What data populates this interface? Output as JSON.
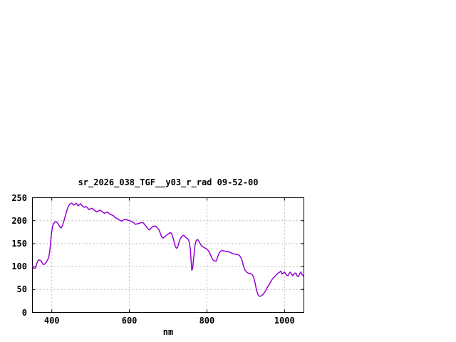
{
  "chart": {
    "title": "sr_2026_038_TGF__y03_r_rad 09-52-00",
    "xlabel": "nm"
  },
  "colors": {
    "background": "#ffffff",
    "line": "#9400d3",
    "grid": "#b4b4b4",
    "axis": "#000000",
    "text": "#000000"
  },
  "chart_data": {
    "type": "line",
    "title": "sr_2026_038_TGF__y03_r_rad 09-52-00",
    "xlabel": "nm",
    "ylabel": "",
    "xlim": [
      350,
      1050
    ],
    "ylim": [
      0,
      250
    ],
    "xticks": [
      400,
      600,
      800,
      1000
    ],
    "yticks": [
      0,
      50,
      100,
      150,
      200,
      250
    ],
    "grid": true,
    "legend_position": "none",
    "line_color": "#9400d3",
    "series": [
      {
        "name": "sr_2026_038_TGF__y03_r_rad",
        "points": [
          [
            350,
            100
          ],
          [
            354,
            96
          ],
          [
            358,
            97
          ],
          [
            362,
            108
          ],
          [
            365,
            114
          ],
          [
            369,
            114
          ],
          [
            373,
            112
          ],
          [
            377,
            105
          ],
          [
            381,
            105
          ],
          [
            385,
            109
          ],
          [
            389,
            114
          ],
          [
            392,
            120
          ],
          [
            395,
            135
          ],
          [
            397,
            155
          ],
          [
            399,
            172
          ],
          [
            402,
            188
          ],
          [
            405,
            194
          ],
          [
            408,
            197
          ],
          [
            411,
            198
          ],
          [
            414,
            196
          ],
          [
            417,
            192
          ],
          [
            421,
            186
          ],
          [
            424,
            184
          ],
          [
            427,
            188
          ],
          [
            430,
            196
          ],
          [
            433,
            205
          ],
          [
            436,
            214
          ],
          [
            439,
            222
          ],
          [
            442,
            230
          ],
          [
            445,
            235
          ],
          [
            448,
            237
          ],
          [
            451,
            238
          ],
          [
            454,
            236
          ],
          [
            457,
            234
          ],
          [
            460,
            236
          ],
          [
            463,
            238
          ],
          [
            466,
            235
          ],
          [
            468,
            232
          ],
          [
            471,
            235
          ],
          [
            474,
            237
          ],
          [
            477,
            234
          ],
          [
            480,
            231
          ],
          [
            484,
            229
          ],
          [
            488,
            231
          ],
          [
            492,
            228
          ],
          [
            496,
            224
          ],
          [
            500,
            226
          ],
          [
            504,
            227
          ],
          [
            508,
            224
          ],
          [
            512,
            221
          ],
          [
            516,
            219
          ],
          [
            520,
            221
          ],
          [
            524,
            223
          ],
          [
            528,
            221
          ],
          [
            532,
            218
          ],
          [
            536,
            216
          ],
          [
            540,
            218
          ],
          [
            544,
            219
          ],
          [
            548,
            215
          ],
          [
            552,
            213
          ],
          [
            556,
            212
          ],
          [
            560,
            210
          ],
          [
            564,
            206
          ],
          [
            568,
            205
          ],
          [
            572,
            203
          ],
          [
            576,
            201
          ],
          [
            580,
            199
          ],
          [
            584,
            201
          ],
          [
            588,
            203
          ],
          [
            592,
            203
          ],
          [
            596,
            201
          ],
          [
            600,
            200
          ],
          [
            604,
            199
          ],
          [
            608,
            197
          ],
          [
            612,
            195
          ],
          [
            616,
            192
          ],
          [
            620,
            193
          ],
          [
            624,
            194
          ],
          [
            628,
            195
          ],
          [
            632,
            196
          ],
          [
            636,
            195
          ],
          [
            640,
            191
          ],
          [
            644,
            187
          ],
          [
            648,
            182
          ],
          [
            652,
            180
          ],
          [
            656,
            184
          ],
          [
            660,
            187
          ],
          [
            664,
            188
          ],
          [
            668,
            188
          ],
          [
            672,
            184
          ],
          [
            676,
            181
          ],
          [
            680,
            172
          ],
          [
            684,
            164
          ],
          [
            687,
            162
          ],
          [
            690,
            164
          ],
          [
            694,
            167
          ],
          [
            698,
            170
          ],
          [
            702,
            172
          ],
          [
            706,
            174
          ],
          [
            709,
            172
          ],
          [
            712,
            165
          ],
          [
            715,
            155
          ],
          [
            718,
            145
          ],
          [
            721,
            140
          ],
          [
            724,
            141
          ],
          [
            727,
            150
          ],
          [
            730,
            158
          ],
          [
            733,
            163
          ],
          [
            736,
            166
          ],
          [
            739,
            168
          ],
          [
            742,
            167
          ],
          [
            745,
            164
          ],
          [
            748,
            162
          ],
          [
            751,
            160
          ],
          [
            754,
            155
          ],
          [
            757,
            140
          ],
          [
            759,
            115
          ],
          [
            761,
            92
          ],
          [
            763,
            95
          ],
          [
            766,
            120
          ],
          [
            769,
            145
          ],
          [
            772,
            156
          ],
          [
            775,
            159
          ],
          [
            778,
            157
          ],
          [
            781,
            152
          ],
          [
            784,
            148
          ],
          [
            787,
            144
          ],
          [
            790,
            143
          ],
          [
            793,
            141
          ],
          [
            796,
            140
          ],
          [
            800,
            138
          ],
          [
            804,
            134
          ],
          [
            808,
            128
          ],
          [
            812,
            120
          ],
          [
            816,
            114
          ],
          [
            820,
            112
          ],
          [
            824,
            112
          ],
          [
            828,
            122
          ],
          [
            832,
            130
          ],
          [
            836,
            134
          ],
          [
            840,
            135
          ],
          [
            844,
            134
          ],
          [
            848,
            133
          ],
          [
            852,
            133
          ],
          [
            856,
            132
          ],
          [
            860,
            131
          ],
          [
            864,
            129
          ],
          [
            868,
            128
          ],
          [
            872,
            127
          ],
          [
            876,
            127
          ],
          [
            880,
            126
          ],
          [
            884,
            124
          ],
          [
            888,
            119
          ],
          [
            891,
            112
          ],
          [
            894,
            102
          ],
          [
            897,
            94
          ],
          [
            900,
            90
          ],
          [
            904,
            87
          ],
          [
            908,
            85
          ],
          [
            912,
            85
          ],
          [
            916,
            83
          ],
          [
            920,
            78
          ],
          [
            924,
            65
          ],
          [
            928,
            48
          ],
          [
            932,
            38
          ],
          [
            936,
            35
          ],
          [
            940,
            36
          ],
          [
            944,
            39
          ],
          [
            948,
            43
          ],
          [
            952,
            48
          ],
          [
            956,
            55
          ],
          [
            960,
            60
          ],
          [
            964,
            66
          ],
          [
            968,
            72
          ],
          [
            972,
            76
          ],
          [
            976,
            79
          ],
          [
            980,
            83
          ],
          [
            984,
            86
          ],
          [
            988,
            88
          ],
          [
            991,
            90
          ],
          [
            994,
            84
          ],
          [
            997,
            86
          ],
          [
            1000,
            88
          ],
          [
            1003,
            84
          ],
          [
            1006,
            81
          ],
          [
            1009,
            80
          ],
          [
            1012,
            85
          ],
          [
            1015,
            88
          ],
          [
            1018,
            84
          ],
          [
            1021,
            80
          ],
          [
            1024,
            83
          ],
          [
            1027,
            86
          ],
          [
            1030,
            85
          ],
          [
            1033,
            79
          ],
          [
            1036,
            78
          ],
          [
            1039,
            84
          ],
          [
            1042,
            88
          ],
          [
            1045,
            83
          ],
          [
            1048,
            80
          ],
          [
            1050,
            82
          ]
        ]
      }
    ]
  }
}
